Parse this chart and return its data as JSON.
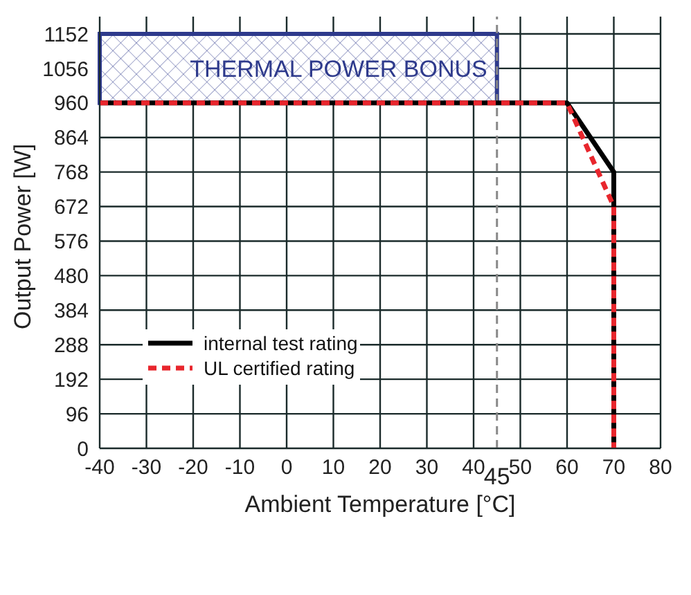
{
  "chart_data": {
    "type": "line",
    "xlabel": "Ambient Temperature [°C]",
    "ylabel": "Output Power [W]",
    "xlim": [
      -40,
      80
    ],
    "xticks": [
      -40,
      -30,
      -20,
      -10,
      0,
      10,
      20,
      30,
      40,
      50,
      60,
      70,
      80
    ],
    "ylim": [
      0,
      1200
    ],
    "yticks": [
      0,
      96,
      192,
      288,
      384,
      480,
      576,
      672,
      768,
      864,
      960,
      1056,
      1152
    ],
    "grid": true,
    "legend": "left",
    "marker": "none",
    "series": [
      {
        "name": "internal test rating",
        "color": "#000000",
        "line_style": "solid",
        "x": [
          -40,
          60,
          70,
          70
        ],
        "values": [
          960,
          960,
          768,
          0
        ]
      },
      {
        "name": "UL certified rating",
        "color": "#e8262d",
        "line_style": "dashed",
        "x": [
          -40,
          60,
          70,
          70
        ],
        "values": [
          960,
          960,
          672,
          0
        ]
      }
    ],
    "bands": [
      {
        "axis": "y",
        "from": 960,
        "to": 1152,
        "label": "THERMAL POWER BONUS",
        "color": "#2e3a8c"
      }
    ],
    "ref_lines": [
      {
        "axis": "x",
        "value": 45,
        "label": "45",
        "color": "#888888",
        "line_style": "dashed"
      }
    ]
  }
}
